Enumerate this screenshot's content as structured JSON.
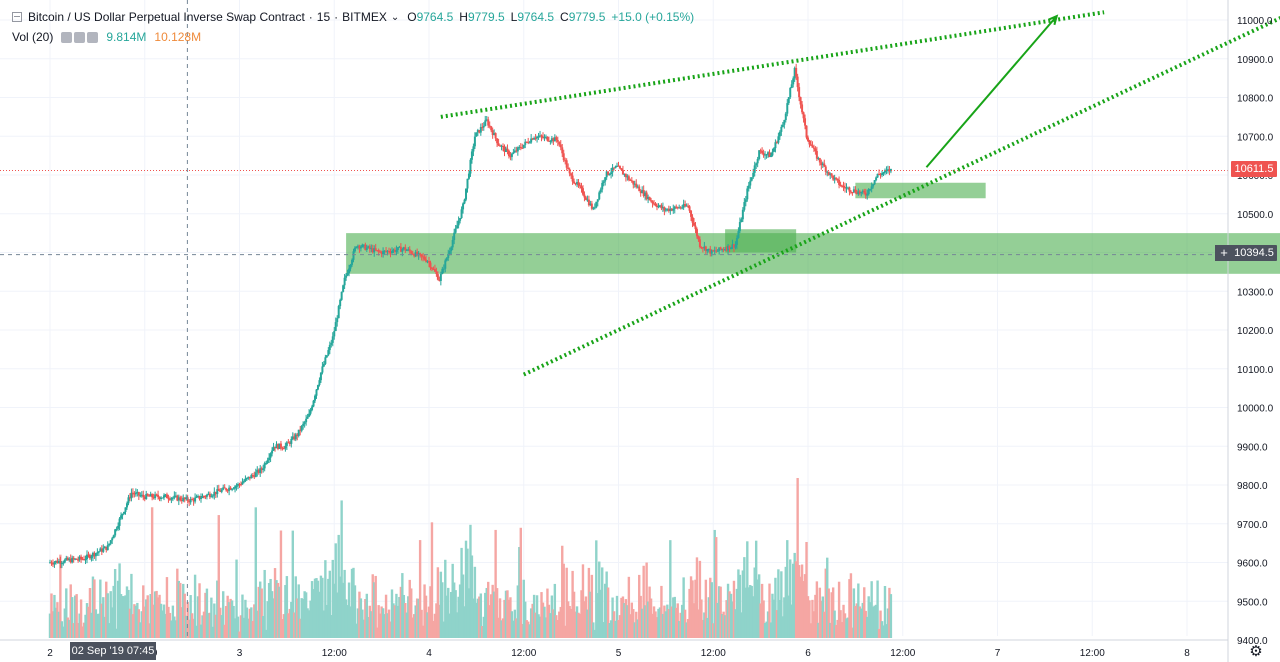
{
  "header": {
    "symbol": "Bitcoin / US Dollar Perpetual Inverse Swap Contract",
    "sep": "·",
    "interval": "15",
    "exchange": "BITMEX",
    "open_label": "O",
    "open": "9764.5",
    "high_label": "H",
    "high": "9779.5",
    "low_label": "L",
    "low": "9764.5",
    "close_label": "C",
    "close": "9779.5",
    "change": "+15.0 (+0.15%)"
  },
  "volume_legend": {
    "title": "Vol (20)",
    "value_a": "9.814M",
    "value_b": "10.128M"
  },
  "badges": {
    "last_price": "10611.5",
    "crosshair_price": "10394.5",
    "crosshair_time": "02 Sep '19   07:45"
  },
  "colors": {
    "up": "#26a69a",
    "down": "#ef5350",
    "vol_up": "#8fd3ca",
    "vol_down": "#f5a6a3",
    "zone": "#4caf50",
    "trend": "#18a418",
    "grid": "#f0f3fa"
  },
  "icons": {
    "settings": "gear-icon"
  },
  "chart_data": {
    "type": "candlestick",
    "y_ticks": [
      "9400.0",
      "9500.0",
      "9600.0",
      "9700.0",
      "9800.0",
      "9900.0",
      "10000.0",
      "10100.0",
      "10200.0",
      "10300.0",
      "10400.0",
      "10500.0",
      "10600.0",
      "10700.0",
      "10800.0",
      "10900.0",
      "11000.0"
    ],
    "x_ticks": [
      "2",
      "12:00",
      "3",
      "12:00",
      "4",
      "12:00",
      "5",
      "12:00",
      "6",
      "12:00",
      "7",
      "12:00",
      "8"
    ],
    "ylim": [
      9400,
      11050
    ],
    "price_path": [
      [
        0,
        9600
      ],
      [
        3,
        9610
      ],
      [
        5,
        9640
      ],
      [
        6,
        9710
      ],
      [
        7,
        9780
      ],
      [
        8,
        9770
      ],
      [
        10,
        9770
      ],
      [
        12,
        9760
      ],
      [
        14,
        9780
      ],
      [
        16,
        9800
      ],
      [
        18,
        9840
      ],
      [
        19,
        9900
      ],
      [
        20,
        9900
      ],
      [
        21,
        9930
      ],
      [
        22,
        9980
      ],
      [
        23,
        10090
      ],
      [
        24,
        10180
      ],
      [
        25,
        10330
      ],
      [
        26,
        10420
      ],
      [
        28,
        10400
      ],
      [
        30,
        10410
      ],
      [
        32,
        10380
      ],
      [
        33,
        10330
      ],
      [
        34,
        10420
      ],
      [
        35,
        10520
      ],
      [
        36,
        10700
      ],
      [
        37,
        10740
      ],
      [
        38,
        10680
      ],
      [
        39,
        10650
      ],
      [
        41,
        10700
      ],
      [
        43,
        10690
      ],
      [
        44,
        10600
      ],
      [
        45,
        10560
      ],
      [
        46,
        10510
      ],
      [
        47,
        10600
      ],
      [
        48,
        10620
      ],
      [
        49,
        10590
      ],
      [
        50,
        10560
      ],
      [
        51,
        10530
      ],
      [
        52,
        10510
      ],
      [
        54,
        10520
      ],
      [
        55,
        10420
      ],
      [
        56,
        10400
      ],
      [
        57,
        10410
      ],
      [
        58,
        10420
      ],
      [
        59,
        10560
      ],
      [
        60,
        10660
      ],
      [
        61,
        10650
      ],
      [
        62,
        10730
      ],
      [
        63,
        10870
      ],
      [
        64,
        10700
      ],
      [
        65,
        10640
      ],
      [
        66,
        10600
      ],
      [
        67,
        10570
      ],
      [
        68,
        10560
      ],
      [
        69,
        10550
      ],
      [
        70,
        10600
      ],
      [
        71,
        10612
      ]
    ],
    "zones": [
      {
        "name": "consolidation-zone",
        "x0": 25,
        "x1": 105,
        "y0": 10345,
        "y1": 10450
      },
      {
        "name": "retest-zone",
        "x0": 57,
        "x1": 63,
        "y0": 10400,
        "y1": 10460
      },
      {
        "name": "support-zone",
        "x0": 68,
        "x1": 79,
        "y0": 10540,
        "y1": 10580
      }
    ],
    "lines": [
      {
        "name": "upper-trendline",
        "style": "dotted",
        "p0": [
          33,
          10750
        ],
        "p1": [
          89,
          11020
        ]
      },
      {
        "name": "lower-trendline",
        "style": "dotted",
        "p0": [
          40,
          10085
        ],
        "p1": [
          107,
          11050
        ]
      },
      {
        "name": "target-arrow",
        "style": "arrow",
        "p0": [
          74,
          10620
        ],
        "p1": [
          85,
          11010
        ]
      }
    ],
    "crosshair": {
      "x": 11.6,
      "y": 10394.5
    },
    "last_price": 10611.5
  }
}
